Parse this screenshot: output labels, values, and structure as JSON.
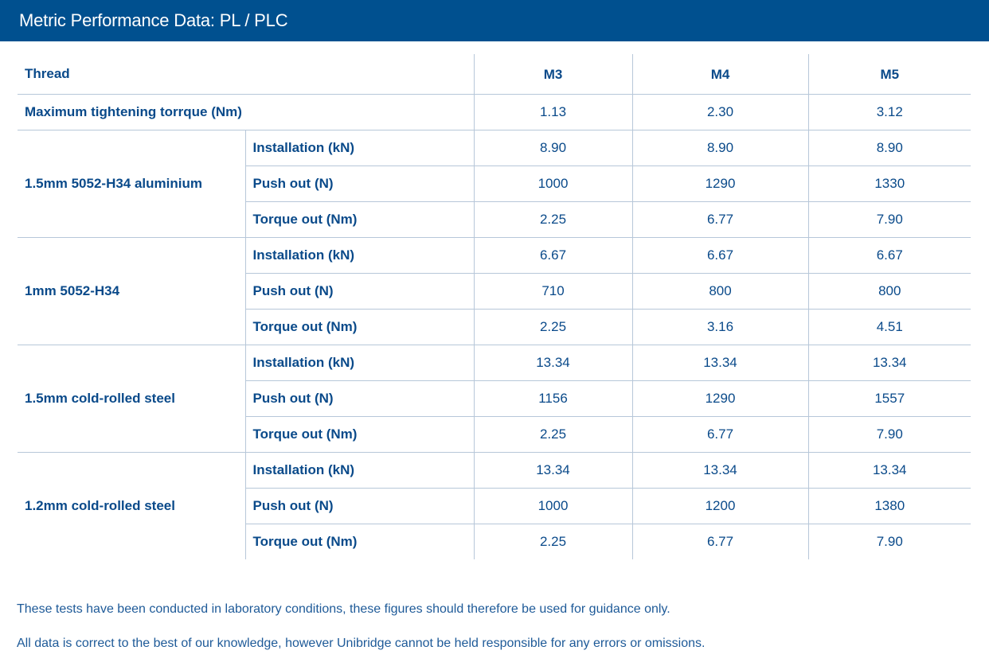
{
  "header": {
    "title": "Metric Performance Data: PL / PLC"
  },
  "table": {
    "thread_label": "Thread",
    "columns": [
      "M3",
      "M4",
      "M5"
    ],
    "torque_row": {
      "label": "Maximum tightening torrque (Nm)",
      "values": [
        "1.13",
        "2.30",
        "3.12"
      ]
    },
    "groups": [
      {
        "label": "1.5mm 5052-H34 aluminium",
        "rows": [
          {
            "label": "Installation (kN)",
            "values": [
              "8.90",
              "8.90",
              "8.90"
            ]
          },
          {
            "label": "Push out (N)",
            "values": [
              "1000",
              "1290",
              "1330"
            ]
          },
          {
            "label": "Torque out (Nm)",
            "values": [
              "2.25",
              "6.77",
              "7.90"
            ]
          }
        ]
      },
      {
        "label": "1mm 5052-H34",
        "rows": [
          {
            "label": "Installation (kN)",
            "values": [
              "6.67",
              "6.67",
              "6.67"
            ]
          },
          {
            "label": "Push out (N)",
            "values": [
              "710",
              "800",
              "800"
            ]
          },
          {
            "label": "Torque out (Nm)",
            "values": [
              "2.25",
              "3.16",
              "4.51"
            ]
          }
        ]
      },
      {
        "label": "1.5mm cold-rolled steel",
        "rows": [
          {
            "label": "Installation (kN)",
            "values": [
              "13.34",
              "13.34",
              "13.34"
            ]
          },
          {
            "label": "Push out (N)",
            "values": [
              "1156",
              "1290",
              "1557"
            ]
          },
          {
            "label": "Torque out (Nm)",
            "values": [
              "2.25",
              "6.77",
              "7.90"
            ]
          }
        ]
      },
      {
        "label": "1.2mm cold-rolled steel",
        "rows": [
          {
            "label": "Installation (kN)",
            "values": [
              "13.34",
              "13.34",
              "13.34"
            ]
          },
          {
            "label": "Push out (N)",
            "values": [
              "1000",
              "1200",
              "1380"
            ]
          },
          {
            "label": "Torque out (Nm)",
            "values": [
              "2.25",
              "6.77",
              "7.90"
            ]
          }
        ]
      }
    ]
  },
  "notes": [
    "These tests have been conducted in laboratory conditions, these figures should therefore be used for guidance only.",
    "All data is correct to the best of our knowledge, however Unibridge cannot be held responsible for any errors or omissions."
  ]
}
